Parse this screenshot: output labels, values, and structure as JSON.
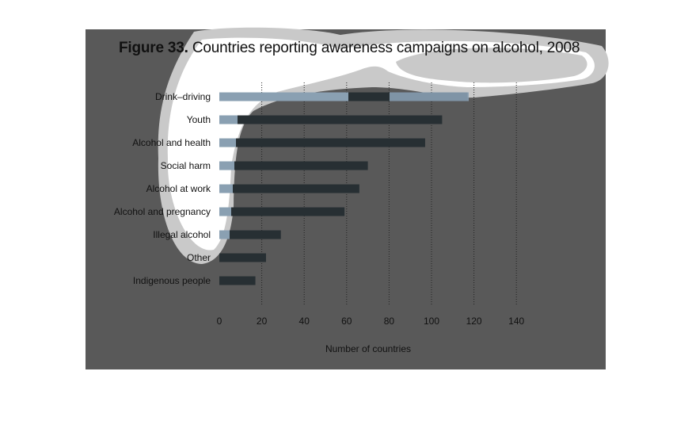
{
  "figure": {
    "title_number": "Figure 33.",
    "title_text": "Countries reporting awareness campaigns on alcohol, 2008"
  },
  "chart_data": {
    "type": "bar",
    "orientation": "horizontal",
    "categories": [
      "Drink–driving",
      "Youth",
      "Alcohol and health",
      "Social harm",
      "Alcohol at work",
      "Alcohol and pregnancy",
      "Illegal alcohol",
      "Other",
      "Indigenous people"
    ],
    "values": [
      117,
      105,
      97,
      70,
      66,
      59,
      29,
      22,
      17
    ],
    "xlabel": "Number of countries",
    "ylabel": "",
    "xlim": [
      0,
      140
    ],
    "xticks": [
      "0",
      "20",
      "40",
      "60",
      "80",
      "100",
      "120",
      "140"
    ],
    "grid": "vertical dotted",
    "colors": {
      "bar": "#272f33",
      "bar_highlight": "#8aa0b2",
      "panel": "#595959",
      "gridline": "#222222",
      "text": "#111111"
    }
  }
}
